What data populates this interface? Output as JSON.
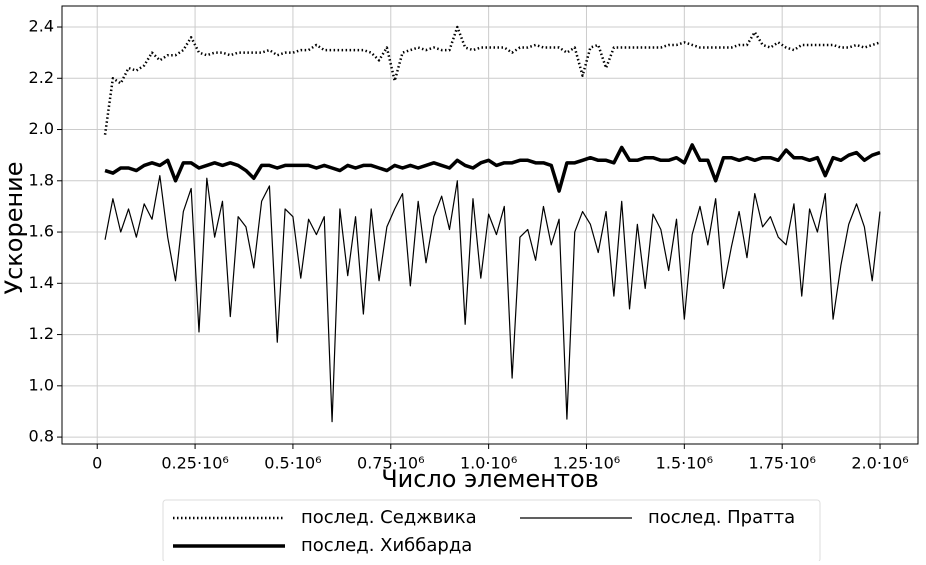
{
  "chart_data": {
    "type": "line",
    "x_label": "Число элементов",
    "y_label": "Ускорение",
    "x": [
      20000,
      40000,
      60000,
      80000,
      100000,
      120000,
      140000,
      160000,
      180000,
      200000,
      220000,
      240000,
      260000,
      280000,
      300000,
      320000,
      340000,
      360000,
      380000,
      400000,
      420000,
      440000,
      460000,
      480000,
      500000,
      520000,
      540000,
      560000,
      580000,
      600000,
      620000,
      640000,
      660000,
      680000,
      700000,
      720000,
      740000,
      760000,
      780000,
      800000,
      820000,
      840000,
      860000,
      880000,
      900000,
      920000,
      940000,
      960000,
      980000,
      1000000,
      1020000,
      1040000,
      1060000,
      1080000,
      1100000,
      1120000,
      1140000,
      1160000,
      1180000,
      1200000,
      1220000,
      1240000,
      1260000,
      1280000,
      1300000,
      1320000,
      1340000,
      1360000,
      1380000,
      1400000,
      1420000,
      1440000,
      1460000,
      1480000,
      1500000,
      1520000,
      1540000,
      1560000,
      1580000,
      1600000,
      1620000,
      1640000,
      1660000,
      1680000,
      1700000,
      1720000,
      1740000,
      1760000,
      1780000,
      1800000,
      1820000,
      1840000,
      1860000,
      1880000,
      1900000,
      1920000,
      1940000,
      1960000,
      1980000,
      2000000
    ],
    "series": [
      {
        "name": "послед. Седжвика",
        "color": "#000000",
        "style": "dotted",
        "values": [
          1.98,
          2.2,
          2.18,
          2.24,
          2.23,
          2.25,
          2.3,
          2.27,
          2.29,
          2.29,
          2.31,
          2.36,
          2.3,
          2.29,
          2.3,
          2.3,
          2.29,
          2.3,
          2.3,
          2.3,
          2.3,
          2.31,
          2.29,
          2.3,
          2.3,
          2.31,
          2.31,
          2.33,
          2.31,
          2.31,
          2.31,
          2.31,
          2.31,
          2.31,
          2.3,
          2.27,
          2.32,
          2.19,
          2.3,
          2.31,
          2.32,
          2.31,
          2.32,
          2.31,
          2.31,
          2.4,
          2.32,
          2.31,
          2.32,
          2.32,
          2.32,
          2.32,
          2.3,
          2.32,
          2.32,
          2.33,
          2.32,
          2.32,
          2.32,
          2.3,
          2.32,
          2.21,
          2.32,
          2.33,
          2.24,
          2.32,
          2.32,
          2.32,
          2.32,
          2.32,
          2.32,
          2.32,
          2.33,
          2.33,
          2.34,
          2.33,
          2.32,
          2.32,
          2.32,
          2.32,
          2.32,
          2.33,
          2.33,
          2.38,
          2.33,
          2.32,
          2.34,
          2.32,
          2.31,
          2.33,
          2.33,
          2.33,
          2.33,
          2.33,
          2.32,
          2.32,
          2.33,
          2.32,
          2.33,
          2.34
        ]
      },
      {
        "name": "послед. Хиббарда",
        "color": "#000000",
        "style": "thick",
        "values": [
          1.84,
          1.83,
          1.85,
          1.85,
          1.84,
          1.86,
          1.87,
          1.86,
          1.88,
          1.8,
          1.87,
          1.87,
          1.85,
          1.86,
          1.87,
          1.86,
          1.87,
          1.86,
          1.84,
          1.81,
          1.86,
          1.86,
          1.85,
          1.86,
          1.86,
          1.86,
          1.86,
          1.85,
          1.86,
          1.85,
          1.84,
          1.86,
          1.85,
          1.86,
          1.86,
          1.85,
          1.84,
          1.86,
          1.85,
          1.86,
          1.85,
          1.86,
          1.87,
          1.86,
          1.85,
          1.88,
          1.86,
          1.85,
          1.87,
          1.88,
          1.86,
          1.87,
          1.87,
          1.88,
          1.88,
          1.87,
          1.87,
          1.86,
          1.76,
          1.87,
          1.87,
          1.88,
          1.89,
          1.88,
          1.88,
          1.87,
          1.93,
          1.88,
          1.88,
          1.89,
          1.89,
          1.88,
          1.88,
          1.89,
          1.87,
          1.94,
          1.88,
          1.88,
          1.8,
          1.89,
          1.89,
          1.88,
          1.89,
          1.88,
          1.89,
          1.89,
          1.88,
          1.92,
          1.89,
          1.89,
          1.88,
          1.89,
          1.82,
          1.89,
          1.88,
          1.9,
          1.91,
          1.88,
          1.9,
          1.91
        ]
      },
      {
        "name": "послед. Пратта",
        "color": "#000000",
        "style": "thin",
        "values": [
          1.57,
          1.73,
          1.6,
          1.69,
          1.58,
          1.71,
          1.65,
          1.82,
          1.58,
          1.41,
          1.68,
          1.77,
          1.21,
          1.81,
          1.58,
          1.72,
          1.27,
          1.66,
          1.62,
          1.46,
          1.72,
          1.78,
          1.17,
          1.69,
          1.66,
          1.42,
          1.65,
          1.59,
          1.66,
          0.86,
          1.69,
          1.43,
          1.66,
          1.28,
          1.69,
          1.41,
          1.62,
          1.69,
          1.75,
          1.39,
          1.72,
          1.48,
          1.66,
          1.74,
          1.61,
          1.8,
          1.24,
          1.73,
          1.42,
          1.67,
          1.59,
          1.7,
          1.03,
          1.58,
          1.61,
          1.49,
          1.7,
          1.55,
          1.65,
          0.87,
          1.6,
          1.68,
          1.63,
          1.52,
          1.68,
          1.35,
          1.72,
          1.3,
          1.63,
          1.38,
          1.67,
          1.61,
          1.45,
          1.65,
          1.26,
          1.59,
          1.7,
          1.55,
          1.73,
          1.38,
          1.54,
          1.68,
          1.5,
          1.75,
          1.62,
          1.66,
          1.58,
          1.55,
          1.71,
          1.35,
          1.69,
          1.6,
          1.75,
          1.26,
          1.47,
          1.63,
          1.71,
          1.62,
          1.41,
          1.68
        ]
      }
    ],
    "xlim": [
      -90000,
      2097000
    ],
    "ylim": [
      0.773,
      2.482
    ],
    "xticks": [
      0,
      {
        "value": 250000,
        "label": "0.25·10⁶"
      },
      {
        "value": 500000,
        "label": "0.5·10⁶"
      },
      {
        "value": 750000,
        "label": "0.75·10⁶"
      },
      {
        "value": 1000000,
        "label": "1.0·10⁶"
      },
      {
        "value": 1250000,
        "label": "1.25·10⁶"
      },
      {
        "value": 1500000,
        "label": "1.5·10⁶"
      },
      {
        "value": 1750000,
        "label": "1.75·10⁶"
      },
      {
        "value": 2000000,
        "label": "2.0·10⁶"
      }
    ],
    "yticks": [
      {
        "value": 0.8,
        "label": "0.8"
      },
      {
        "value": 1.0,
        "label": "1.0"
      },
      {
        "value": 1.2,
        "label": "1.2"
      },
      {
        "value": 1.4,
        "label": "1.4"
      },
      {
        "value": 1.6,
        "label": "1.6"
      },
      {
        "value": 1.8,
        "label": "1.8"
      },
      {
        "value": 2.0,
        "label": "2.0"
      },
      {
        "value": 2.2,
        "label": "2.2"
      },
      {
        "value": 2.4,
        "label": "2.4"
      }
    ],
    "grid": true,
    "legend": "bottom"
  }
}
